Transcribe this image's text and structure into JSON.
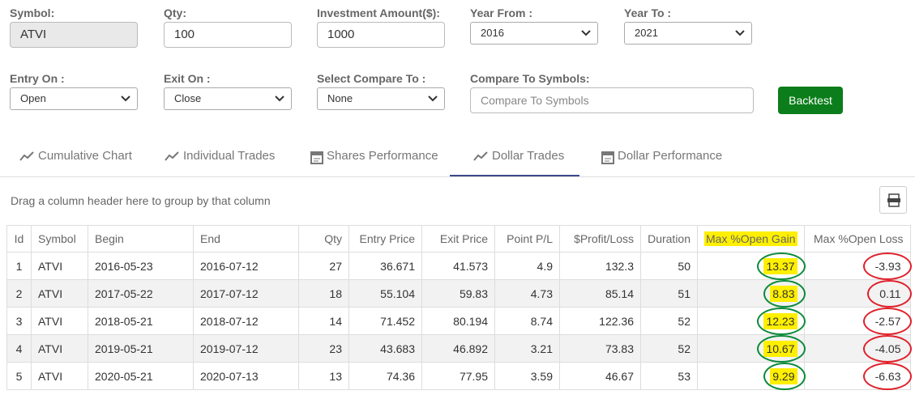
{
  "form": {
    "symbol": {
      "label": "Symbol:",
      "value": "ATVI"
    },
    "qty": {
      "label": "Qty:",
      "value": "100"
    },
    "investment": {
      "label": "Investment Amount($):",
      "value": "1000"
    },
    "year_from": {
      "label": "Year From :",
      "value": "2016"
    },
    "year_to": {
      "label": "Year To :",
      "value": "2021"
    },
    "entry_on": {
      "label": "Entry On :",
      "value": "Open"
    },
    "exit_on": {
      "label": "Exit On :",
      "value": "Close"
    },
    "compare_select": {
      "label": "Select Compare To :",
      "value": "None"
    },
    "compare_symbols": {
      "label": "Compare To Symbols:",
      "placeholder": "Compare To Symbols"
    },
    "button": "Backtest"
  },
  "tabs": [
    "Cumulative Chart",
    "Individual Trades",
    "Shares Performance",
    "Dollar Trades",
    "Dollar Performance"
  ],
  "active_tab": 3,
  "group_hint": "Drag a column header here to group by that column",
  "table": {
    "columns": [
      "Id",
      "Symbol",
      "Begin",
      "End",
      "Qty",
      "Entry Price",
      "Exit Price",
      "Point P/L",
      "$Profit/Loss",
      "Duration",
      "Max %Open Gain",
      "Max %Open Loss"
    ],
    "rows": [
      [
        1,
        "ATVI",
        "2016-05-23",
        "2016-07-12",
        27,
        36.671,
        41.573,
        4.9,
        132.3,
        50,
        13.37,
        -3.93
      ],
      [
        2,
        "ATVI",
        "2017-05-22",
        "2017-07-12",
        18,
        55.104,
        59.83,
        4.73,
        85.14,
        51,
        8.83,
        0.11
      ],
      [
        3,
        "ATVI",
        "2018-05-21",
        "2018-07-12",
        14,
        71.452,
        80.194,
        8.74,
        122.36,
        52,
        12.23,
        -2.57
      ],
      [
        4,
        "ATVI",
        "2019-05-21",
        "2019-07-12",
        23,
        43.683,
        46.892,
        3.21,
        73.83,
        52,
        10.67,
        -4.05
      ],
      [
        5,
        "ATVI",
        "2020-05-21",
        "2020-07-13",
        13,
        74.36,
        77.95,
        3.59,
        46.67,
        53,
        9.29,
        -6.63
      ]
    ]
  }
}
